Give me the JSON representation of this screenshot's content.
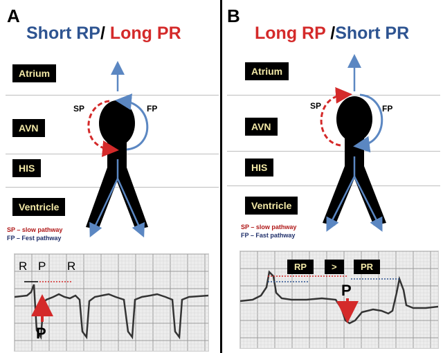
{
  "panel_a": {
    "letter": "A",
    "title_part1": "Short RP",
    "title_sep": "/",
    "title_part2": "Long PR",
    "lanes": [
      "Atrium",
      "AVN",
      "HIS",
      "Ventricle"
    ],
    "sp_label": "SP",
    "fp_label": "FP",
    "legend_sp": "SP – slow pathway",
    "legend_fp": "FP – Fest pathway",
    "ecg_r1": "R",
    "ecg_p": "P",
    "ecg_r2": "R",
    "ecg_arrow_label": "P"
  },
  "panel_b": {
    "letter": "B",
    "title_part1": "Long RP",
    "title_sep": "/",
    "title_part2": "Short PR",
    "lanes": [
      "Atrium",
      "AVN",
      "HIS",
      "Ventricle"
    ],
    "sp_label": "SP",
    "fp_label": "FP",
    "legend_sp": "SP – slow pathway",
    "legend_fp": "FP – Fast pathway",
    "ecg_box_rp": "RP",
    "ecg_box_gt": ">",
    "ecg_box_pr": "PR",
    "ecg_arrow_label": "P"
  },
  "colors": {
    "blue": "#2e5491",
    "red": "#d42a2a",
    "pathway_blue": "#5b87c2",
    "label_text": "#f2e8a6"
  },
  "icons": [
    "arrow-up-icon",
    "arrow-down-icon",
    "avn-node-shape"
  ]
}
